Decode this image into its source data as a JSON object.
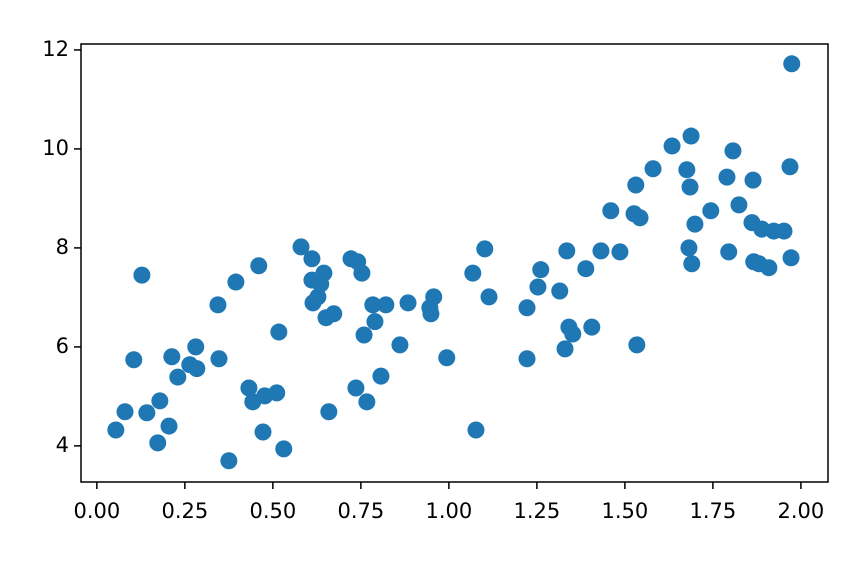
{
  "chart_data": {
    "type": "scatter",
    "color": "#1f77b4",
    "x": [
      0.054,
      0.08,
      0.105,
      0.128,
      0.142,
      0.173,
      0.179,
      0.205,
      0.213,
      0.23,
      0.264,
      0.281,
      0.284,
      0.344,
      0.347,
      0.375,
      0.395,
      0.432,
      0.443,
      0.46,
      0.472,
      0.477,
      0.511,
      0.517,
      0.531,
      0.58,
      0.611,
      0.611,
      0.614,
      0.628,
      0.636,
      0.645,
      0.651,
      0.659,
      0.673,
      0.722,
      0.736,
      0.741,
      0.753,
      0.759,
      0.767,
      0.784,
      0.79,
      0.807,
      0.821,
      0.861,
      0.884,
      0.946,
      0.949,
      0.957,
      0.994,
      1.068,
      1.077,
      1.102,
      1.114,
      1.222,
      1.222,
      1.253,
      1.261,
      1.315,
      1.33,
      1.335,
      1.341,
      1.352,
      1.389,
      1.406,
      1.432,
      1.46,
      1.486,
      1.526,
      1.531,
      1.534,
      1.543,
      1.58,
      1.634,
      1.676,
      1.682,
      1.685,
      1.688,
      1.69,
      1.699,
      1.744,
      1.79,
      1.795,
      1.807,
      1.824,
      1.861,
      1.864,
      1.866,
      1.881,
      1.889,
      1.909,
      1.923,
      1.952,
      1.969,
      1.972,
      1.974
    ],
    "values": [
      4.32,
      4.69,
      5.74,
      7.45,
      4.67,
      4.06,
      4.91,
      4.4,
      5.8,
      5.39,
      5.64,
      6.0,
      5.56,
      6.85,
      5.76,
      3.7,
      7.31,
      5.17,
      4.89,
      7.64,
      4.28,
      5.01,
      5.07,
      6.3,
      3.94,
      8.02,
      7.78,
      7.35,
      6.89,
      7.01,
      7.27,
      7.49,
      6.59,
      4.69,
      6.67,
      7.78,
      5.17,
      7.72,
      7.49,
      6.24,
      4.89,
      6.85,
      6.51,
      5.41,
      6.85,
      6.04,
      6.89,
      6.79,
      6.67,
      7.01,
      5.78,
      7.49,
      4.32,
      7.98,
      7.01,
      6.79,
      5.76,
      7.21,
      7.56,
      7.13,
      5.96,
      7.94,
      6.4,
      6.26,
      7.58,
      6.4,
      7.94,
      8.75,
      7.92,
      8.69,
      9.27,
      6.04,
      8.61,
      9.6,
      10.06,
      9.58,
      8.0,
      9.23,
      10.26,
      7.68,
      8.48,
      8.75,
      9.43,
      7.92,
      9.96,
      8.87,
      8.51,
      9.37,
      7.72,
      7.68,
      8.38,
      7.6,
      8.34,
      8.34,
      9.64,
      7.8,
      11.72
    ],
    "xlim": [
      -0.045,
      2.077
    ],
    "ylim": [
      3.27,
      12.12
    ],
    "xticks": [
      {
        "value": 0,
        "label": "0.00"
      },
      {
        "value": 0.25,
        "label": "0.25"
      },
      {
        "value": 0.5,
        "label": "0.50"
      },
      {
        "value": 0.75,
        "label": "0.75"
      },
      {
        "value": 1,
        "label": "1.00"
      },
      {
        "value": 1.25,
        "label": "1.25"
      },
      {
        "value": 1.5,
        "label": "1.50"
      },
      {
        "value": 1.75,
        "label": "1.75"
      },
      {
        "value": 2,
        "label": "2.00"
      }
    ],
    "yticks": [
      4,
      6,
      8,
      10,
      12
    ]
  }
}
